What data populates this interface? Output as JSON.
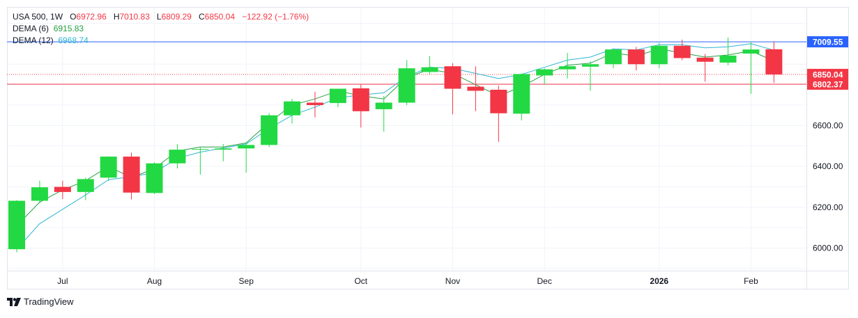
{
  "header": {
    "symbol": "USA 500",
    "interval": "1W",
    "open_label": "O",
    "open": "6972.96",
    "high_label": "H",
    "high": "7010.83",
    "low_label": "L",
    "low": "6809.29",
    "close_label": "C",
    "close": "6850.04",
    "change": "−122.92 (−1.76%)"
  },
  "indicators": [
    {
      "label": "DEMA (6)",
      "value": "6915.83",
      "color": "#26a042"
    },
    {
      "label": "DEMA (12)",
      "value": "6968.74",
      "color": "#2fb5d1"
    }
  ],
  "brand": {
    "name": "TradingView"
  },
  "colors": {
    "up": "#22d943",
    "down": "#f23645",
    "grid": "#f0f3fa",
    "axis_text": "#131722",
    "hline": "#2962ff"
  },
  "chart_data": {
    "type": "candlestick",
    "interval": "1W",
    "ylim": [
      5890,
      7180
    ],
    "yticks": [
      6000,
      6200,
      6400,
      6600
    ],
    "xticks": [
      {
        "label": "Jul",
        "index": 2
      },
      {
        "label": "Aug",
        "index": 6
      },
      {
        "label": "Sep",
        "index": 10
      },
      {
        "label": "Oct",
        "index": 15
      },
      {
        "label": "Nov",
        "index": 19
      },
      {
        "label": "Dec",
        "index": 23
      },
      {
        "label": "2026",
        "index": 28,
        "bold": true
      },
      {
        "label": "Feb",
        "index": 32
      }
    ],
    "candles": [
      {
        "o": 5995,
        "h": 6235,
        "l": 5980,
        "c": 6232
      },
      {
        "o": 6232,
        "h": 6330,
        "l": 6220,
        "c": 6298
      },
      {
        "o": 6300,
        "h": 6330,
        "l": 6240,
        "c": 6275
      },
      {
        "o": 6275,
        "h": 6345,
        "l": 6235,
        "c": 6338
      },
      {
        "o": 6345,
        "h": 6450,
        "l": 6330,
        "c": 6448
      },
      {
        "o": 6448,
        "h": 6468,
        "l": 6238,
        "c": 6272
      },
      {
        "o": 6270,
        "h": 6420,
        "l": 6265,
        "c": 6415
      },
      {
        "o": 6415,
        "h": 6510,
        "l": 6390,
        "c": 6482
      },
      {
        "o": 6482,
        "h": 6495,
        "l": 6360,
        "c": 6485
      },
      {
        "o": 6482,
        "h": 6510,
        "l": 6425,
        "c": 6488
      },
      {
        "o": 6488,
        "h": 6515,
        "l": 6370,
        "c": 6505
      },
      {
        "o": 6505,
        "h": 6660,
        "l": 6495,
        "c": 6650
      },
      {
        "o": 6650,
        "h": 6730,
        "l": 6610,
        "c": 6718
      },
      {
        "o": 6712,
        "h": 6765,
        "l": 6640,
        "c": 6700
      },
      {
        "o": 6710,
        "h": 6780,
        "l": 6690,
        "c": 6780
      },
      {
        "o": 6782,
        "h": 6800,
        "l": 6590,
        "c": 6670
      },
      {
        "o": 6680,
        "h": 6745,
        "l": 6570,
        "c": 6712
      },
      {
        "o": 6712,
        "h": 6920,
        "l": 6700,
        "c": 6880
      },
      {
        "o": 6862,
        "h": 6940,
        "l": 6850,
        "c": 6885
      },
      {
        "o": 6890,
        "h": 6905,
        "l": 6655,
        "c": 6780
      },
      {
        "o": 6790,
        "h": 6890,
        "l": 6670,
        "c": 6770
      },
      {
        "o": 6775,
        "h": 6795,
        "l": 6520,
        "c": 6660
      },
      {
        "o": 6658,
        "h": 6855,
        "l": 6625,
        "c": 6852
      },
      {
        "o": 6845,
        "h": 6880,
        "l": 6800,
        "c": 6875
      },
      {
        "o": 6875,
        "h": 6955,
        "l": 6830,
        "c": 6890
      },
      {
        "o": 6888,
        "h": 6915,
        "l": 6770,
        "c": 6900
      },
      {
        "o": 6900,
        "h": 6975,
        "l": 6880,
        "c": 6972
      },
      {
        "o": 6972,
        "h": 6985,
        "l": 6870,
        "c": 6900
      },
      {
        "o": 6900,
        "h": 7005,
        "l": 6880,
        "c": 6990
      },
      {
        "o": 6990,
        "h": 7020,
        "l": 6920,
        "c": 6930
      },
      {
        "o": 6932,
        "h": 6950,
        "l": 6815,
        "c": 6912
      },
      {
        "o": 6908,
        "h": 7030,
        "l": 6895,
        "c": 6942
      },
      {
        "o": 6952,
        "h": 7010,
        "l": 6755,
        "c": 6972
      },
      {
        "o": 6972.96,
        "h": 7010.83,
        "l": 6809.29,
        "c": 6850.04
      }
    ],
    "dema_6": [
      6110,
      6225,
      6285,
      6330,
      6400,
      6345,
      6390,
      6475,
      6495,
      6495,
      6515,
      6615,
      6700,
      6730,
      6770,
      6745,
      6730,
      6835,
      6875,
      6855,
      6800,
      6745,
      6790,
      6850,
      6895,
      6905,
      6955,
      6940,
      6975,
      6955,
      6935,
      6945,
      6965,
      6915.83
    ],
    "dema_12": [
      5995,
      6120,
      6190,
      6260,
      6335,
      6350,
      6370,
      6440,
      6470,
      6490,
      6510,
      6585,
      6650,
      6690,
      6735,
      6750,
      6760,
      6840,
      6885,
      6880,
      6855,
      6830,
      6850,
      6885,
      6920,
      6935,
      6975,
      6970,
      6995,
      6995,
      6980,
      6985,
      7000,
      6968.74
    ],
    "price_lines": [
      {
        "label": "7009.55",
        "value": 7009.55,
        "color": "#2962ff",
        "style": "solid"
      },
      {
        "label": "6850.04",
        "value": 6850.04,
        "color": "#f23645",
        "style": "dotted"
      },
      {
        "label": "6802.37",
        "value": 6802.37,
        "color": "#f23645",
        "style": "solid"
      }
    ]
  }
}
